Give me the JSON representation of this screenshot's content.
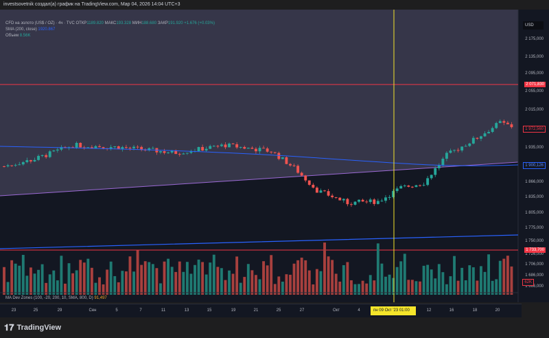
{
  "header": "investsovetnik создал(а) график на TradingView.com, Мар 04, 2026 14:04 UTC+3",
  "legend": {
    "symbol": "CFD на золото (US$ / OZ) · 4ч · TVC",
    "o_label": "ОТКР",
    "o": "1189.820",
    "h_label": "МАКС",
    "h": "193.328",
    "l_label": "МИН",
    "l": "188.680",
    "c_label": "ЗАКР",
    "c": "191.920",
    "chg": "+1.676 (+0.03%)",
    "sma_label": "SMA (200, close)",
    "sma": "1920.867",
    "vol_label": "Объем",
    "vol": "8.56K"
  },
  "currency": "USD",
  "price_labels": [
    [
      "2 175,000",
      57
    ],
    [
      "2 135,000",
      83
    ],
    [
      "2 095,000",
      107
    ],
    [
      "2 055,000",
      133
    ],
    [
      "2 015,000",
      160
    ],
    [
      "1 935,000",
      215
    ],
    [
      "1 866,000",
      265
    ],
    [
      "1 835,000",
      287
    ],
    [
      "1 805,000",
      310
    ],
    [
      "1 775,000",
      332
    ],
    [
      "1 750,000",
      351
    ],
    [
      "1 726,000",
      370
    ],
    [
      "1 706,000",
      385
    ],
    [
      "1 686,000",
      401
    ],
    [
      "1 666,000",
      417
    ]
  ],
  "tags": {
    "level_high": "2 071,830",
    "last": "1 972,560",
    "sma": "1 900,126",
    "level_low": "1 733,700",
    "volume": "62K"
  },
  "indicator": {
    "label": "MA Dev Zones (100, -20, 200, 10, SMA, 800, D)",
    "value": "91,497"
  },
  "x_ticks": [
    "23",
    "25",
    "29",
    "Сен",
    "5",
    "7",
    "11",
    "13",
    "15",
    "19",
    "21",
    "25",
    "27",
    "Окт",
    "4",
    "12",
    "16",
    "18",
    "20"
  ],
  "crosshair_date": "пн 09 Окт '23   01:00",
  "brand": "TradingView",
  "colors": {
    "up": "#26a69a",
    "down": "#ef5350",
    "level": "#f23645",
    "sma": "#2962ff",
    "crosshair": "#f5e52b"
  },
  "chart_data": {
    "type": "candlestick",
    "close_keypoints": [
      [
        0,
        1898
      ],
      [
        8,
        1912
      ],
      [
        18,
        1940
      ],
      [
        30,
        1936
      ],
      [
        45,
        1925
      ],
      [
        58,
        1940
      ],
      [
        70,
        1928
      ],
      [
        76,
        1895
      ],
      [
        82,
        1850
      ],
      [
        90,
        1825
      ],
      [
        98,
        1828
      ],
      [
        104,
        1855
      ],
      [
        110,
        1865
      ],
      [
        116,
        1920
      ],
      [
        124,
        1955
      ],
      [
        130,
        1985
      ],
      [
        134,
        1975
      ]
    ]
  }
}
